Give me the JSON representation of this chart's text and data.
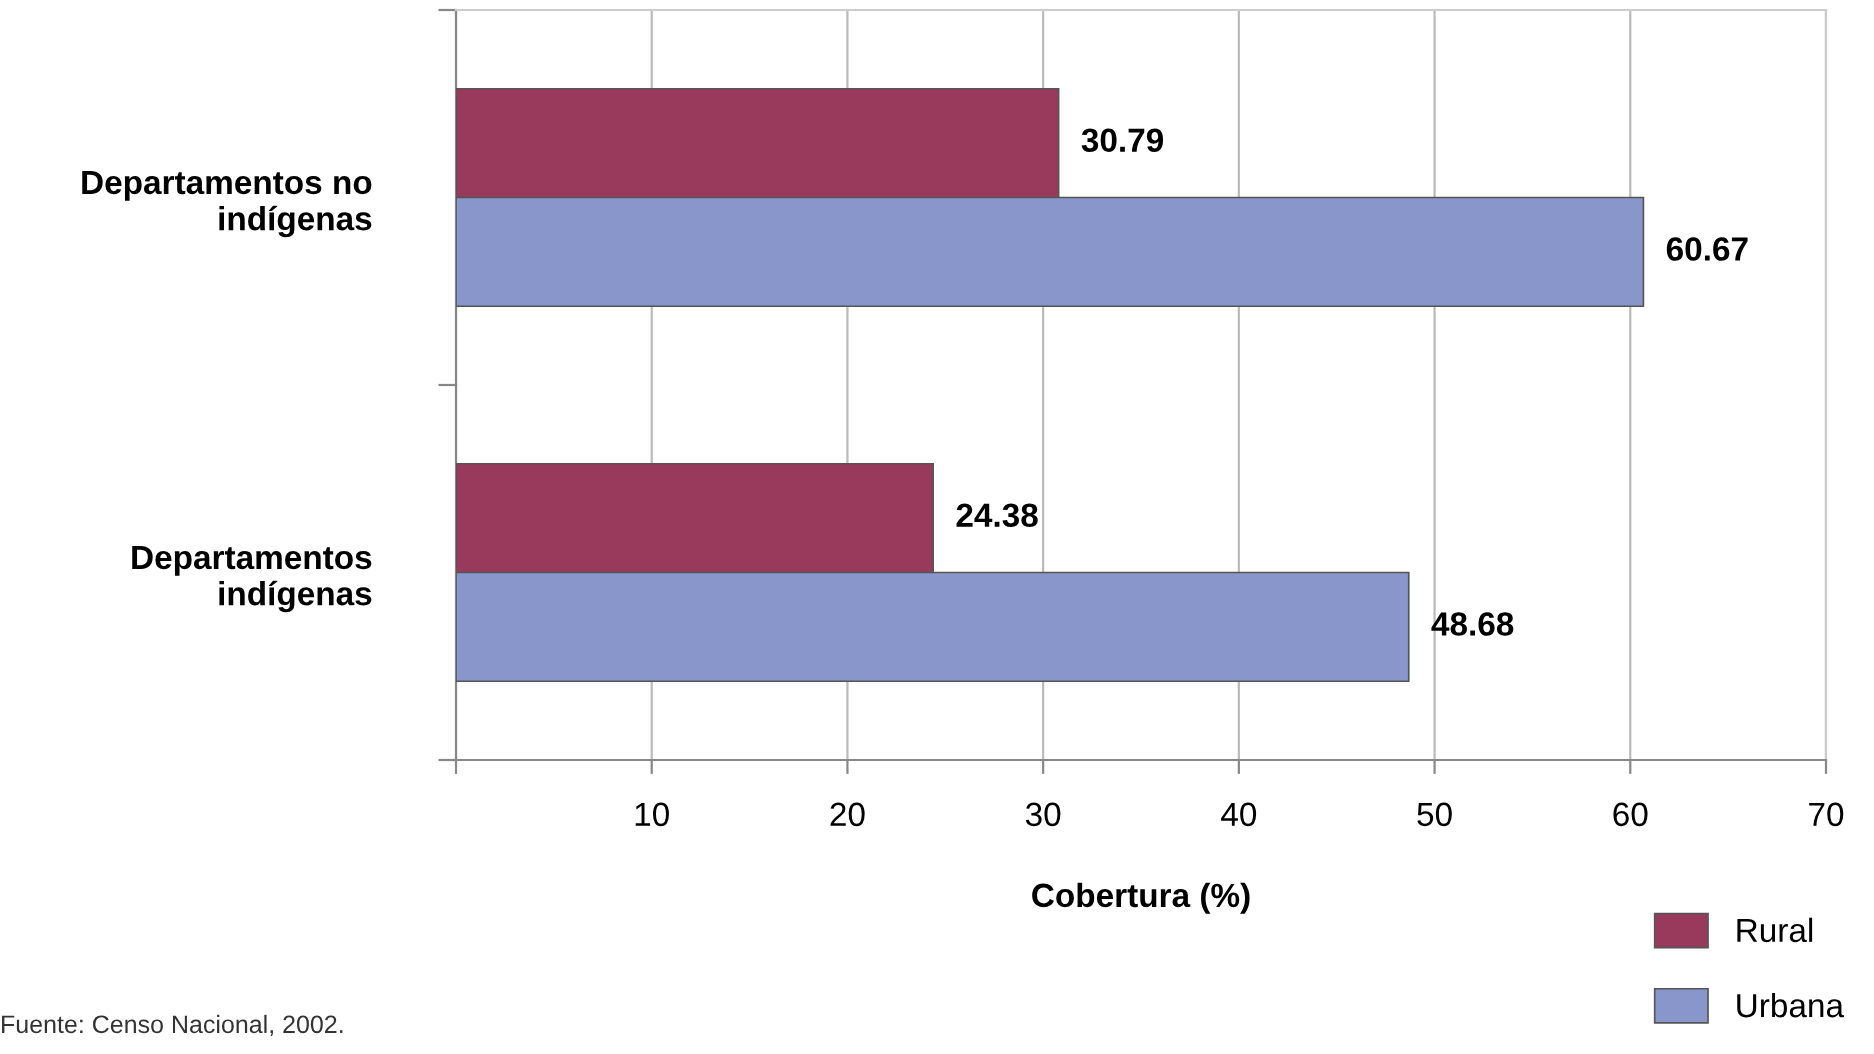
{
  "chart_data": {
    "type": "bar",
    "orientation": "horizontal",
    "xlabel": "Cobertura (%)",
    "categories": [
      "Departamentos no\nindígenas",
      "Departamentos\nindígenas"
    ],
    "series": [
      {
        "name": "Rural",
        "color": "#993a5d",
        "values": [
          30.79,
          24.38
        ]
      },
      {
        "name": "Urbana",
        "color": "#8896cc",
        "values": [
          60.67,
          48.68
        ]
      }
    ],
    "xlim": [
      0,
      70
    ],
    "xticks": [
      {
        "value": 0,
        "label": null
      },
      10,
      20,
      30,
      40,
      50,
      60,
      70
    ],
    "grid": "x",
    "legend": "bottom right",
    "data_labels": true,
    "annotations": [
      "Fuente: Censo Nacional, 2002."
    ]
  }
}
